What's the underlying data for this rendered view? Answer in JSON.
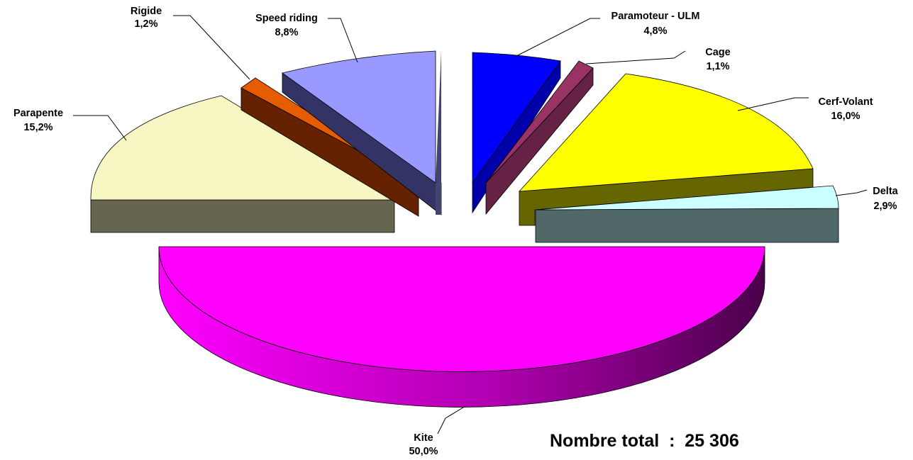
{
  "chart_data": {
    "type": "pie",
    "style": "3d-exploded",
    "annotation": "Nombre total  :  25 306",
    "slices": [
      {
        "name": "Kite",
        "value_label": "50,0%",
        "value": 50.0,
        "color": "#ff00ff"
      },
      {
        "name": "Parapente",
        "value_label": "15,2%",
        "value": 15.2,
        "color": "#f7f7c4"
      },
      {
        "name": "Rigide",
        "value_label": "1,2%",
        "value": 1.2,
        "color": "#e65c00"
      },
      {
        "name": "Speed riding",
        "value_label": "8,8%",
        "value": 8.8,
        "color": "#9999ff"
      },
      {
        "name": "Paramoteur - ULM",
        "value_label": "4,8%",
        "value": 4.8,
        "color": "#0000ff"
      },
      {
        "name": "Cage",
        "value_label": "1,1%",
        "value": 1.1,
        "color": "#993366"
      },
      {
        "name": "Cerf-Volant",
        "value_label": "16,0%",
        "value": 16.0,
        "color": "#ffff00"
      },
      {
        "name": "Delta",
        "value_label": "2,9%",
        "value": 2.9,
        "color": "#ccffff"
      }
    ]
  }
}
